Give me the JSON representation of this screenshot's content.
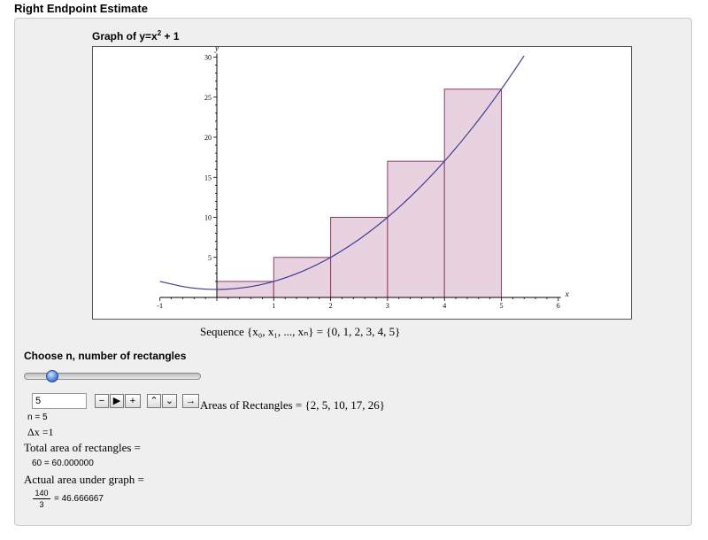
{
  "window": {
    "title": "Right Endpoint Estimate"
  },
  "graph": {
    "title_prefix": "Graph of y=x",
    "title_exponent": "2",
    "title_suffix": " + 1"
  },
  "sequence": {
    "text": "Sequence {x₀, x₁, ..., xₙ} = {0, 1, 2, 3, 4, 5}"
  },
  "controls": {
    "choose_label": "Choose n, number of rectangles",
    "slider": {
      "min": 1,
      "max": 50,
      "value": 5
    },
    "n_input_value": "5",
    "buttons": {
      "decrement": "−",
      "play": "▶",
      "increment": "+",
      "faster": "⌃",
      "slower": "⌄",
      "direction": "→"
    }
  },
  "results": {
    "areas_text": "Areas of Rectangles = {2, 5, 10, 17, 26}",
    "n_value": "n = 5",
    "dx_text": "Δx =1",
    "total_label": "Total area of rectangles =",
    "total_value": "60 = 60.000000",
    "actual_label": "Actual area under graph =",
    "actual_numerator": "140",
    "actual_denominator": "3",
    "actual_value": "= 46.666667"
  },
  "colors": {
    "curve": "#3c3c96",
    "rect_fill": "#e8d2e0",
    "rect_stroke": "#8c3a6a",
    "axis": "#000000"
  },
  "chart_data": {
    "type": "area",
    "function": "y = x^2 + 1",
    "curve": {
      "x": [
        -1,
        -0.5,
        0,
        0.5,
        1,
        1.5,
        2,
        2.5,
        3,
        3.5,
        4,
        4.5,
        5,
        5.4
      ],
      "y": [
        2,
        1.25,
        1,
        1.25,
        2,
        3.25,
        5,
        7.25,
        10,
        13.25,
        17,
        21.25,
        26,
        30.16
      ]
    },
    "rectangles": [
      {
        "x0": 0,
        "x1": 1,
        "height": 2
      },
      {
        "x0": 1,
        "x1": 2,
        "height": 5
      },
      {
        "x0": 2,
        "x1": 3,
        "height": 10
      },
      {
        "x0": 3,
        "x1": 4,
        "height": 17
      },
      {
        "x0": 4,
        "x1": 5,
        "height": 26
      }
    ],
    "xlabel": "x",
    "ylabel": "y",
    "xlim": [
      -1,
      6
    ],
    "ylim": [
      0,
      30
    ],
    "x_ticks": [
      "-1",
      "1",
      "2",
      "3",
      "4",
      "5",
      "6"
    ],
    "y_ticks": [
      "5",
      "10",
      "15",
      "20",
      "25",
      "30"
    ]
  }
}
